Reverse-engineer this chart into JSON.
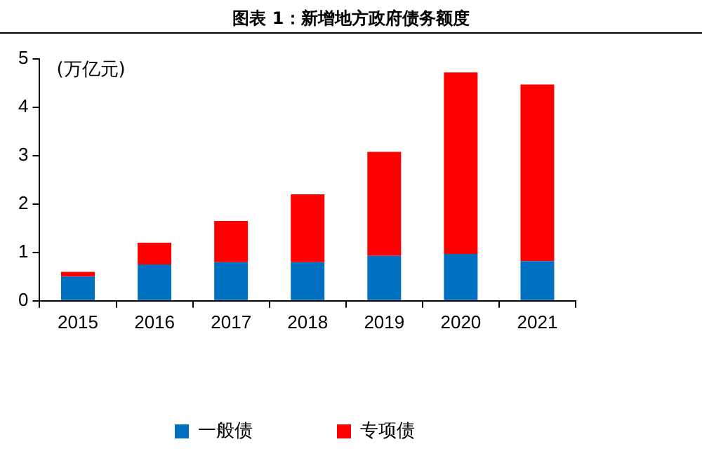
{
  "chart_data": {
    "type": "bar",
    "title": "图表 1：新增地方政府债务额度",
    "ylabel": "(万亿元)",
    "categories": [
      "2015",
      "2016",
      "2017",
      "2018",
      "2019",
      "2020",
      "2021"
    ],
    "series": [
      {
        "name": "一般债",
        "color": "#0070c0",
        "values": [
          0.5,
          0.75,
          0.8,
          0.8,
          0.93,
          0.97,
          0.82
        ]
      },
      {
        "name": "专项债",
        "color": "#ff0000",
        "values": [
          0.1,
          0.45,
          0.85,
          1.4,
          2.15,
          3.75,
          3.65
        ]
      }
    ],
    "stacked": true,
    "ylim": [
      0,
      5
    ],
    "yticks": [
      0,
      1,
      2,
      3,
      4,
      5
    ],
    "grid": false,
    "legend": "bottom"
  }
}
